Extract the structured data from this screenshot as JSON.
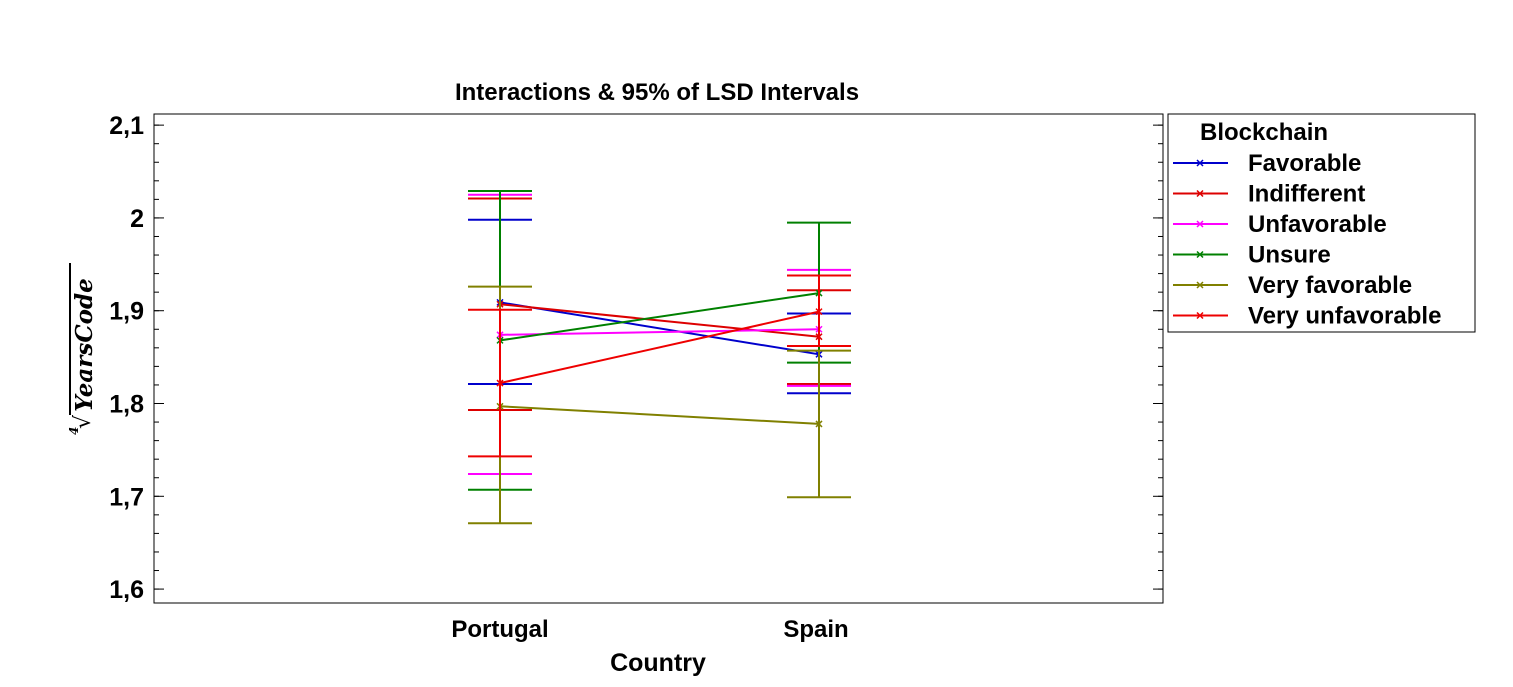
{
  "chart_data": {
    "type": "line",
    "title": "Interactions & 95% of LSD Intervals",
    "xlabel": "Country",
    "ylabel": "YearsCode",
    "ylabel_root_index": "4",
    "categories": [
      "Portugal",
      "Spain"
    ],
    "ylim": [
      1.585,
      2.112
    ],
    "yticks": [
      {
        "value": 1.6,
        "label": "1,6"
      },
      {
        "value": 1.7,
        "label": "1,7"
      },
      {
        "value": 1.8,
        "label": "1,8"
      },
      {
        "value": 1.9,
        "label": "1,9"
      },
      {
        "value": 2.0,
        "label": "2"
      },
      {
        "value": 2.1,
        "label": "2,1"
      }
    ],
    "yminor_step": 0.02,
    "grid": false,
    "legend": {
      "title": "Blockchain",
      "position": "right"
    },
    "series": [
      {
        "name": "Favorable",
        "color": "#0000cc",
        "values": [
          1.909,
          1.853
        ],
        "lower": [
          1.821,
          1.811
        ],
        "upper": [
          1.998,
          1.897
        ]
      },
      {
        "name": "Indifferent",
        "color": "#dd0000",
        "values": [
          1.907,
          1.872
        ],
        "lower": [
          1.793,
          1.821
        ],
        "upper": [
          2.021,
          1.922
        ]
      },
      {
        "name": "Unfavorable",
        "color": "#ff00ff",
        "values": [
          1.874,
          1.88
        ],
        "lower": [
          1.724,
          1.819
        ],
        "upper": [
          2.025,
          1.944
        ]
      },
      {
        "name": "Unsure",
        "color": "#008000",
        "values": [
          1.868,
          1.919
        ],
        "lower": [
          1.707,
          1.844
        ],
        "upper": [
          2.029,
          1.995
        ]
      },
      {
        "name": "Very favorable",
        "color": "#808000",
        "values": [
          1.797,
          1.778
        ],
        "lower": [
          1.671,
          1.699
        ],
        "upper": [
          1.926,
          1.857
        ]
      },
      {
        "name": "Very unfavorable",
        "color": "#ee0000",
        "values": [
          1.822,
          1.899
        ],
        "lower": [
          1.743,
          1.862
        ],
        "upper": [
          1.901,
          1.938
        ]
      }
    ]
  }
}
